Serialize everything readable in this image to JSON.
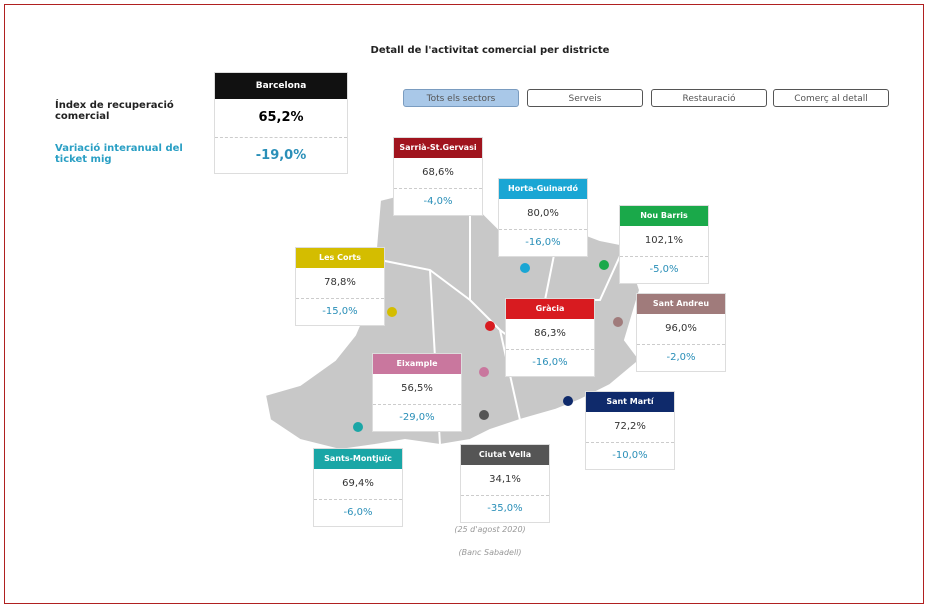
{
  "title": "Detall de l'activitat comercial per districte",
  "filters": [
    "Tots els sectors",
    "Serveis",
    "Restauració",
    "Comerç al detall"
  ],
  "active_filter": 0,
  "labels": {
    "index": "Índex de recuperació comercial",
    "variation": "Variació interanual del ticket mig"
  },
  "city": {
    "name": "Barcelona",
    "index": "65,2%",
    "variation": "-19,0%"
  },
  "districts": [
    {
      "name": "Sarrià-St.Gervasi",
      "color": "#a0141e",
      "index": "68,6%",
      "variation": "-4,0%"
    },
    {
      "name": "Horta-Guinardó",
      "color": "#1aa6d4",
      "index": "80,0%",
      "variation": "-16,0%"
    },
    {
      "name": "Nou Barris",
      "color": "#1aa94a",
      "index": "102,1%",
      "variation": "-5,0%"
    },
    {
      "name": "Les Corts",
      "color": "#d4bd00",
      "index": "78,8%",
      "variation": "-15,0%"
    },
    {
      "name": "Sant Andreu",
      "color": "#a07b7b",
      "index": "96,0%",
      "variation": "-2,0%"
    },
    {
      "name": "Gràcia",
      "color": "#d81b20",
      "index": "86,3%",
      "variation": "-16,0%"
    },
    {
      "name": "Eixample",
      "color": "#c9779e",
      "index": "56,5%",
      "variation": "-29,0%"
    },
    {
      "name": "Sant Martí",
      "color": "#0f2a6b",
      "index": "72,2%",
      "variation": "-10,0%"
    },
    {
      "name": "Ciutat Vella",
      "color": "#555555",
      "index": "34,1%",
      "variation": "-35,0%"
    },
    {
      "name": "Sants-Montjuïc",
      "color": "#1aa6a6",
      "index": "69,4%",
      "variation": "-6,0%"
    }
  ],
  "footer": {
    "date": "(25 d'agost 2020)",
    "source": "(Banc Sabadell)"
  }
}
